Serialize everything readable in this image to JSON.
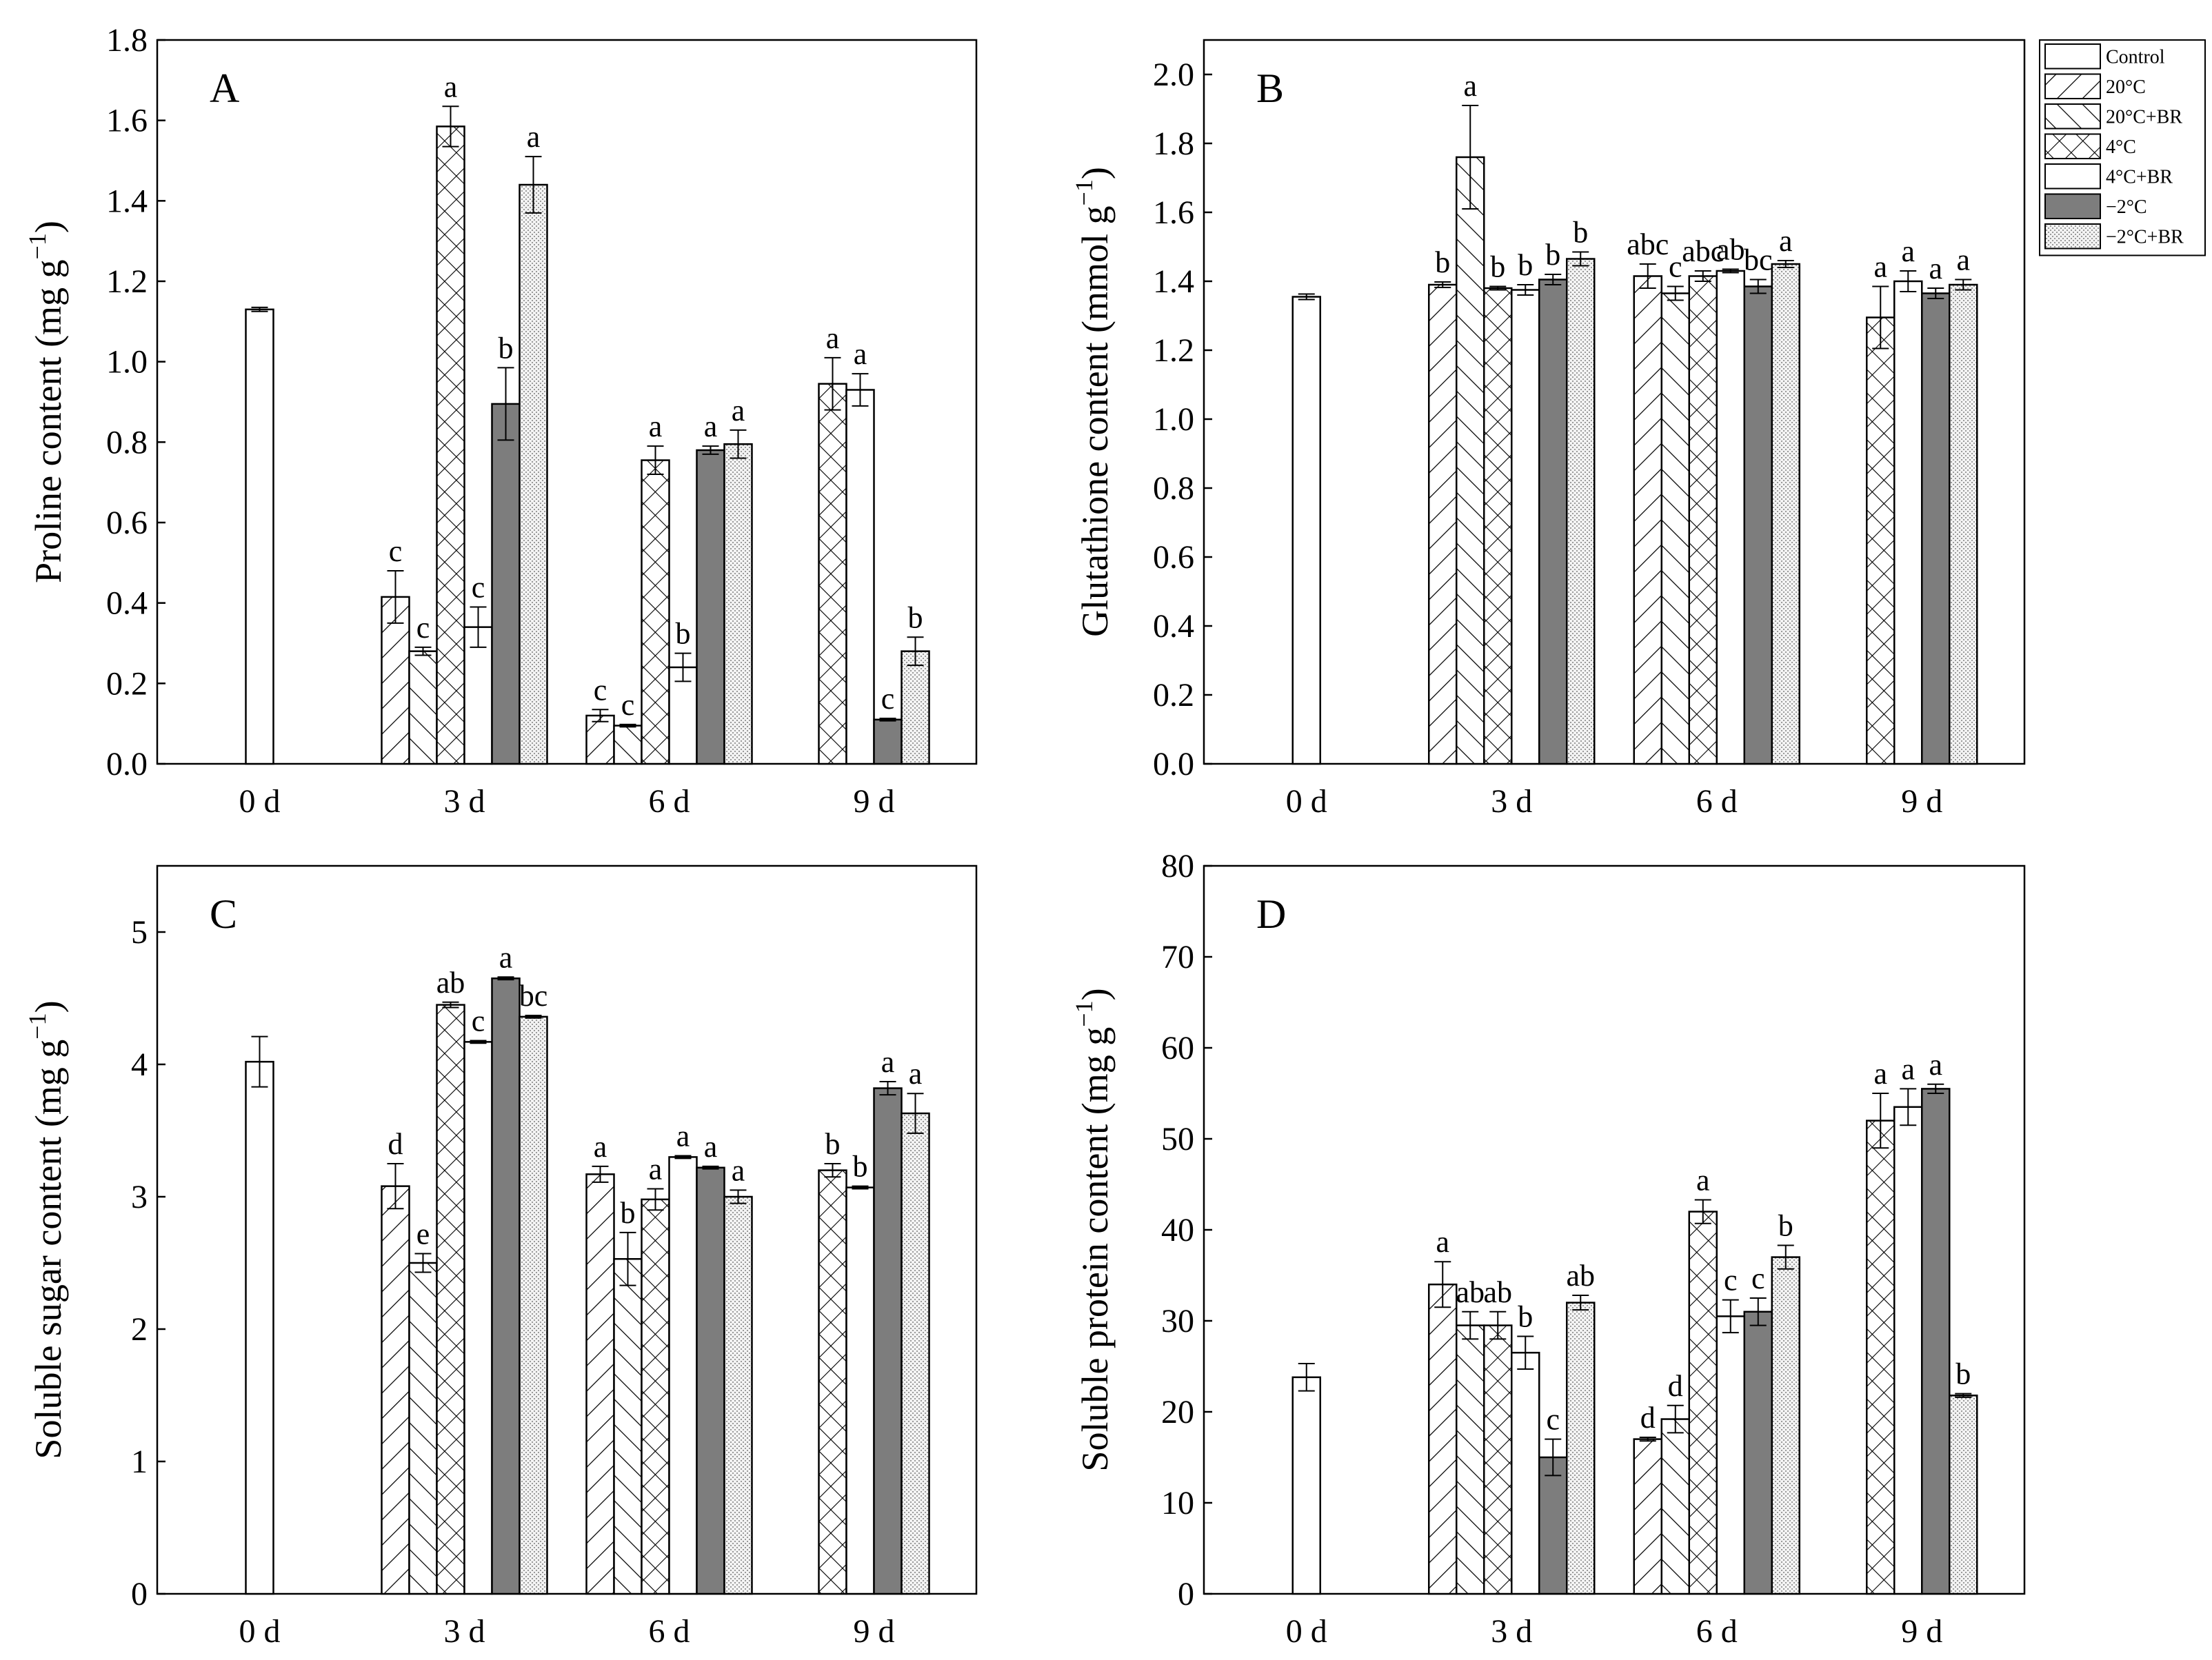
{
  "legend": {
    "entries": [
      "Control",
      "20°C",
      "20°C+BR",
      "4°C",
      "4°C+BR",
      "−2°C",
      "−2°C+BR"
    ]
  },
  "chart_data": [
    {
      "type": "bar",
      "panel": "A",
      "ylabel": "Proline content (mg g⁻¹)",
      "ylim": [
        0,
        1.8
      ],
      "yticks": [
        0,
        0.2,
        0.4,
        0.6,
        0.8,
        1.0,
        1.2,
        1.4,
        1.6,
        1.8
      ],
      "ytick_labels": [
        "0.0",
        "0.2",
        "0.4",
        "0.6",
        "0.8",
        "1.0",
        "1.2",
        "1.4",
        "1.6",
        "1.8"
      ],
      "categories": [
        "0 d",
        "3 d",
        "6 d",
        "9 d"
      ],
      "series": [
        {
          "name": "Control",
          "values": [
            1.13,
            null,
            null,
            null
          ],
          "errors": [
            0.005,
            null,
            null,
            null
          ],
          "letters": [
            "",
            null,
            null,
            null
          ]
        },
        {
          "name": "20°C",
          "values": [
            null,
            0.415,
            0.12,
            null
          ],
          "errors": [
            null,
            0.065,
            0.015,
            null
          ],
          "letters": [
            null,
            "c",
            "c",
            null
          ]
        },
        {
          "name": "20°C+BR",
          "values": [
            null,
            0.28,
            0.095,
            null
          ],
          "errors": [
            null,
            0.01,
            0.003,
            null
          ],
          "letters": [
            null,
            "c",
            "c",
            null
          ]
        },
        {
          "name": "4°C",
          "values": [
            null,
            1.585,
            0.755,
            0.945
          ],
          "errors": [
            null,
            0.05,
            0.035,
            0.065
          ],
          "letters": [
            null,
            "a",
            "a",
            "a"
          ]
        },
        {
          "name": "4°C+BR",
          "values": [
            null,
            0.34,
            0.24,
            0.93
          ],
          "errors": [
            null,
            0.05,
            0.035,
            0.04
          ],
          "letters": [
            null,
            "c",
            "b",
            "a"
          ]
        },
        {
          "name": "−2°C",
          "values": [
            null,
            0.895,
            0.78,
            0.11
          ],
          "errors": [
            null,
            0.09,
            0.01,
            0.003
          ],
          "letters": [
            null,
            "b",
            "a",
            "c"
          ]
        },
        {
          "name": "−2°C+BR",
          "values": [
            null,
            1.44,
            0.795,
            0.28
          ],
          "errors": [
            null,
            0.07,
            0.035,
            0.035
          ],
          "letters": [
            null,
            "a",
            "a",
            "b"
          ]
        }
      ]
    },
    {
      "type": "bar",
      "panel": "B",
      "ylabel": "Glutathione content (mmol g⁻¹)",
      "ylim": [
        0,
        2.1
      ],
      "yticks": [
        0,
        0.2,
        0.4,
        0.6,
        0.8,
        1.0,
        1.2,
        1.4,
        1.6,
        1.8,
        2.0
      ],
      "ytick_labels": [
        "0.0",
        "0.2",
        "0.4",
        "0.6",
        "0.8",
        "1.0",
        "1.2",
        "1.4",
        "1.6",
        "1.8",
        "2.0"
      ],
      "categories": [
        "0 d",
        "3 d",
        "6 d",
        "9 d"
      ],
      "series": [
        {
          "name": "Control",
          "values": [
            1.355,
            null,
            null,
            null
          ],
          "errors": [
            0.008,
            null,
            null,
            null
          ],
          "letters": [
            "",
            null,
            null,
            null
          ]
        },
        {
          "name": "20°C",
          "values": [
            null,
            1.39,
            1.415,
            null
          ],
          "errors": [
            null,
            0.008,
            0.035,
            null
          ],
          "letters": [
            null,
            "b",
            "abc",
            null
          ]
        },
        {
          "name": "20°C+BR",
          "values": [
            null,
            1.76,
            1.365,
            null
          ],
          "errors": [
            null,
            0.15,
            0.02,
            null
          ],
          "letters": [
            null,
            "a",
            "c",
            null
          ]
        },
        {
          "name": "4°C",
          "values": [
            null,
            1.38,
            1.415,
            1.295
          ],
          "errors": [
            null,
            0.005,
            0.015,
            0.09
          ],
          "letters": [
            null,
            "b",
            "abc",
            "a"
          ]
        },
        {
          "name": "4°C+BR",
          "values": [
            null,
            1.375,
            1.43,
            1.4
          ],
          "errors": [
            null,
            0.015,
            0.005,
            0.03
          ],
          "letters": [
            null,
            "b",
            "ab",
            "a"
          ]
        },
        {
          "name": "−2°C",
          "values": [
            null,
            1.405,
            1.385,
            1.365
          ],
          "errors": [
            null,
            0.015,
            0.02,
            0.015
          ],
          "letters": [
            null,
            "b",
            "bc",
            "a"
          ]
        },
        {
          "name": "−2°C+BR",
          "values": [
            null,
            1.465,
            1.45,
            1.39
          ],
          "errors": [
            null,
            0.02,
            0.01,
            0.015
          ],
          "letters": [
            null,
            "b",
            "a",
            "a"
          ]
        }
      ]
    },
    {
      "type": "bar",
      "panel": "C",
      "ylabel": "Soluble sugar content (mg g⁻¹)",
      "ylim": [
        0,
        5.5
      ],
      "yticks": [
        0,
        1,
        2,
        3,
        4,
        5
      ],
      "ytick_labels": [
        "0",
        "1",
        "2",
        "3",
        "4",
        "5"
      ],
      "categories": [
        "0 d",
        "3 d",
        "6 d",
        "9 d"
      ],
      "series": [
        {
          "name": "Control",
          "values": [
            4.02,
            null,
            null,
            null
          ],
          "errors": [
            0.19,
            null,
            null,
            null
          ],
          "letters": [
            "",
            null,
            null,
            null
          ]
        },
        {
          "name": "20°C",
          "values": [
            null,
            3.08,
            3.17,
            null
          ],
          "errors": [
            null,
            0.17,
            0.06,
            null
          ],
          "letters": [
            null,
            "d",
            "a",
            null
          ]
        },
        {
          "name": "20°C+BR",
          "values": [
            null,
            2.5,
            2.53,
            null
          ],
          "errors": [
            null,
            0.07,
            0.2,
            null
          ],
          "letters": [
            null,
            "e",
            "b",
            null
          ]
        },
        {
          "name": "4°C",
          "values": [
            null,
            4.45,
            2.98,
            3.2
          ],
          "errors": [
            null,
            0.02,
            0.08,
            0.05
          ],
          "letters": [
            null,
            "ab",
            "a",
            "b"
          ]
        },
        {
          "name": "4°C+BR",
          "values": [
            null,
            4.17,
            3.3,
            3.07
          ],
          "errors": [
            null,
            0.01,
            0.01,
            0.01
          ],
          "letters": [
            null,
            "c",
            "a",
            "b"
          ]
        },
        {
          "name": "−2°C",
          "values": [
            null,
            4.65,
            3.22,
            3.82
          ],
          "errors": [
            null,
            0.01,
            0.01,
            0.05
          ],
          "letters": [
            null,
            "a",
            "a",
            "a"
          ]
        },
        {
          "name": "−2°C+BR",
          "values": [
            null,
            4.36,
            3.0,
            3.63
          ],
          "errors": [
            null,
            0.01,
            0.05,
            0.15
          ],
          "letters": [
            null,
            "bc",
            "a",
            "a"
          ]
        }
      ]
    },
    {
      "type": "bar",
      "panel": "D",
      "ylabel": "Soluble protein content (mg g⁻¹)",
      "ylim": [
        0,
        80
      ],
      "yticks": [
        0,
        10,
        20,
        30,
        40,
        50,
        60,
        70,
        80
      ],
      "ytick_labels": [
        "0",
        "10",
        "20",
        "30",
        "40",
        "50",
        "60",
        "70",
        "80"
      ],
      "categories": [
        "0 d",
        "3 d",
        "6 d",
        "9 d"
      ],
      "series": [
        {
          "name": "Control",
          "values": [
            23.8,
            null,
            null,
            null
          ],
          "errors": [
            1.5,
            null,
            null,
            null
          ],
          "letters": [
            "",
            null,
            null,
            null
          ]
        },
        {
          "name": "20°C",
          "values": [
            null,
            34.0,
            17.0,
            null
          ],
          "errors": [
            null,
            2.5,
            0.2,
            null
          ],
          "letters": [
            null,
            "a",
            "d",
            null
          ]
        },
        {
          "name": "20°C+BR",
          "values": [
            null,
            29.5,
            19.2,
            null
          ],
          "errors": [
            null,
            1.5,
            1.5,
            null
          ],
          "letters": [
            null,
            "ab",
            "d",
            null
          ]
        },
        {
          "name": "4°C",
          "values": [
            null,
            29.5,
            42.0,
            52.0
          ],
          "errors": [
            null,
            1.5,
            1.3,
            3.0
          ],
          "letters": [
            null,
            "ab",
            "a",
            "a"
          ]
        },
        {
          "name": "4°C+BR",
          "values": [
            null,
            26.5,
            30.5,
            53.5
          ],
          "errors": [
            null,
            1.8,
            1.8,
            2.0
          ],
          "letters": [
            null,
            "b",
            "c",
            "a"
          ]
        },
        {
          "name": "−2°C",
          "values": [
            null,
            15.0,
            31.0,
            55.5
          ],
          "errors": [
            null,
            2.0,
            1.5,
            0.5
          ],
          "letters": [
            null,
            "c",
            "c",
            "a"
          ]
        },
        {
          "name": "−2°C+BR",
          "values": [
            null,
            32.0,
            37.0,
            21.8
          ],
          "errors": [
            null,
            0.8,
            1.3,
            0.2
          ],
          "letters": [
            null,
            "ab",
            "b",
            "b"
          ]
        }
      ]
    }
  ]
}
